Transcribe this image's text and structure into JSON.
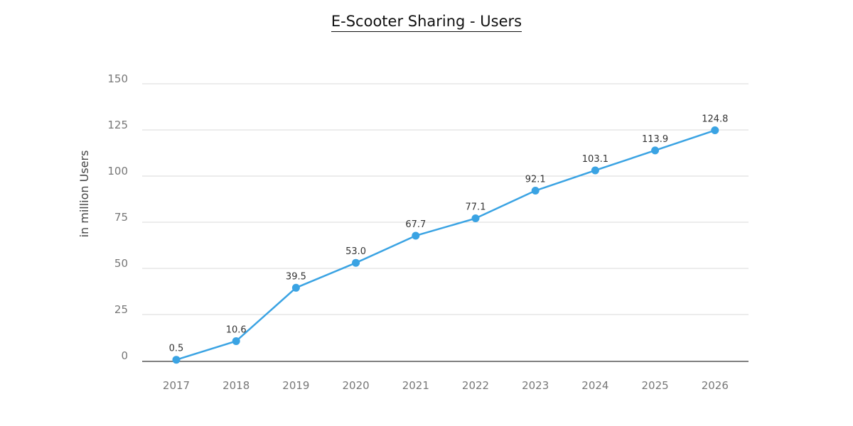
{
  "chart_data": {
    "type": "line",
    "title": "E-Scooter Sharing - Users",
    "xlabel": "",
    "ylabel": "in million Users",
    "categories": [
      "2017",
      "2018",
      "2019",
      "2020",
      "2021",
      "2022",
      "2023",
      "2024",
      "2025",
      "2026"
    ],
    "series": [
      {
        "values": [
          0.5,
          10.6,
          39.5,
          53.0,
          67.7,
          77.1,
          92.1,
          103.1,
          113.9,
          124.8
        ]
      }
    ],
    "data_labels": [
      "0.5",
      "10.6",
      "39.5",
      "53.0",
      "67.7",
      "77.1",
      "92.1",
      "103.1",
      "113.9",
      "124.8"
    ],
    "ylim": [
      0,
      150
    ],
    "yticks": [
      0,
      25,
      50,
      75,
      100,
      125,
      150
    ],
    "grid": true,
    "legend": "none",
    "colors": {
      "line": "#3aa3e3",
      "grid": "#d9d9d9",
      "axis": "#555555"
    }
  }
}
